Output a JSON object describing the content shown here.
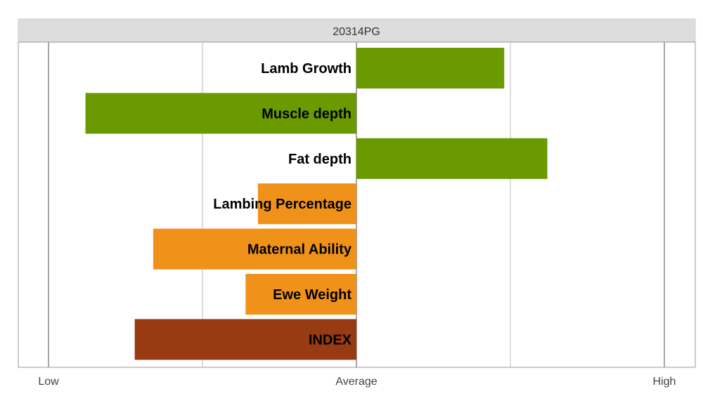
{
  "chart_data": {
    "type": "bar",
    "orientation": "horizontal",
    "title": "20314PG",
    "tick_labels": [
      "Low",
      "Average",
      "High"
    ],
    "xlim": [
      -1,
      1
    ],
    "categories": [
      "Lamb Growth",
      "Muscle depth",
      "Fat depth",
      "Lambing Percentage",
      "Maternal Ability",
      "Ewe Weight",
      "INDEX"
    ],
    "values": [
      0.48,
      -0.88,
      0.62,
      -0.32,
      -0.66,
      -0.36,
      -0.72
    ],
    "colors": [
      "#6a9a00",
      "#6a9a00",
      "#6a9a00",
      "#f0921a",
      "#f0921a",
      "#f0921a",
      "#983a12"
    ],
    "grid": true
  },
  "style": {
    "header_bg": "#dddddd",
    "grid_color": "#bbbbbb",
    "major_line_color": "#888888",
    "border_color": "#999999"
  }
}
